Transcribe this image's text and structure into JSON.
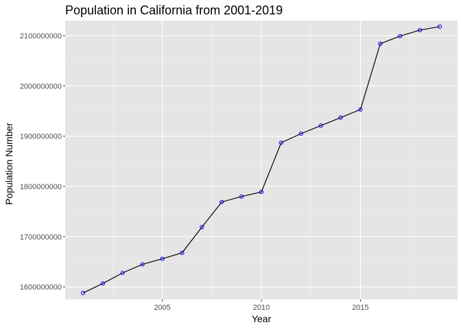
{
  "chart_data": {
    "type": "line",
    "title": "Population in California from 2001-2019",
    "xlabel": "Year",
    "ylabel": "Population Number",
    "xlim": [
      2000.1,
      2019.9
    ],
    "ylim": [
      1575000000,
      2130000000
    ],
    "x_ticks": [
      2005,
      2010,
      2015
    ],
    "x_minor_ticks": [
      2002.5,
      2007.5,
      2012.5,
      2017.5
    ],
    "y_ticks": [
      1600000000,
      1700000000,
      1800000000,
      1900000000,
      2000000000,
      2100000000
    ],
    "x_tick_labels": [
      "2005",
      "2010",
      "2015"
    ],
    "y_tick_labels": [
      "1600000000",
      "1700000000",
      "1800000000",
      "1900000000",
      "2000000000",
      "2100000000"
    ],
    "grid": true,
    "colors": {
      "panel_background": "#e5e5e5",
      "grid_major": "#ffffff",
      "grid_minor": "#f2f2f2",
      "line": "#000000",
      "point_stroke": "#0000ff"
    },
    "series": [
      {
        "x": [
          2001,
          2002,
          2003,
          2004,
          2005,
          2006,
          2007,
          2008,
          2009,
          2010,
          2011,
          2012,
          2013,
          2014,
          2015,
          2016,
          2017,
          2018,
          2019
        ],
        "values": [
          1588000000,
          1607000000,
          1628000000,
          1645000000,
          1656000000,
          1668000000,
          1719000000,
          1769000000,
          1780000000,
          1789000000,
          1887000000,
          1905000000,
          1921000000,
          1937000000,
          1953000000,
          2084000000,
          2099000000,
          2111000000,
          2118000000
        ]
      }
    ]
  }
}
